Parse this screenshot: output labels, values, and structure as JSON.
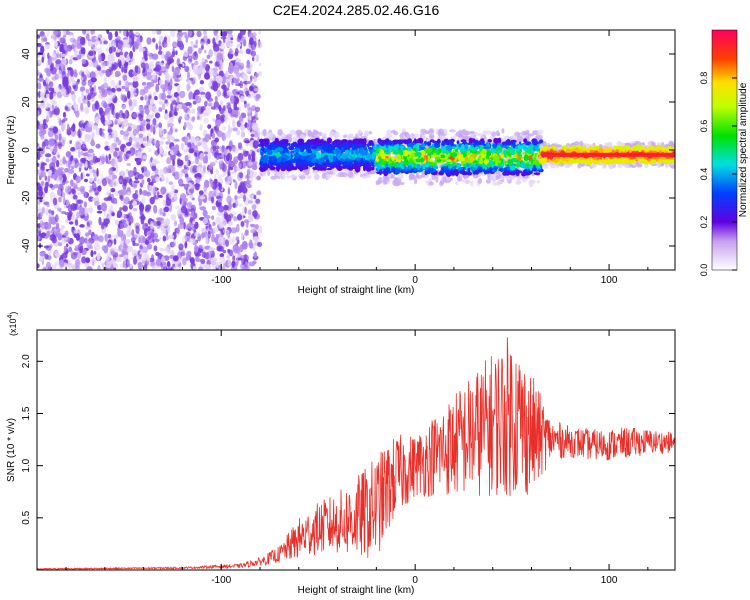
{
  "title": "C2E4.2024.285.02.46.G16",
  "chart_data": [
    {
      "type": "heatmap",
      "xlabel": "Height of straight line (km)",
      "ylabel": "Frequency (Hz)",
      "xlim": [
        -195,
        134
      ],
      "ylim": [
        -50,
        50
      ],
      "x_ticks": [
        -100,
        0,
        100
      ],
      "y_ticks": [
        40,
        20,
        0,
        -20,
        -40
      ],
      "colorbar": {
        "label": "Normalized spectral amplitude",
        "range": [
          0.0,
          1.0
        ],
        "ticks": [
          0.0,
          0.2,
          0.4,
          0.6,
          0.8
        ],
        "tick_labels": [
          "0.0",
          "0.2",
          "0.4",
          "0.6",
          "0.8"
        ]
      },
      "regions": [
        {
          "x_range": [
            -195,
            -80
          ],
          "freq_range": [
            -50,
            50
          ],
          "amplitude": [
            0.0,
            0.1
          ]
        },
        {
          "x_range": [
            -80,
            -20
          ],
          "center_freq": -2,
          "half_width": 6,
          "amplitude": [
            0.2,
            0.5
          ]
        },
        {
          "x_range": [
            -20,
            65
          ],
          "center_freq": -3,
          "half_width": 7,
          "amplitude": [
            0.2,
            0.9
          ]
        },
        {
          "x_range": [
            65,
            134
          ],
          "center_freq": -2,
          "half_width": 3,
          "amplitude": [
            0.7,
            1.0
          ]
        }
      ]
    },
    {
      "type": "line",
      "title": "",
      "xlabel": "Height of straight line (km)",
      "ylabel": "SNR (10 * v/v)",
      "y_multiplier": "(x10",
      "y_multiplier_exp": "4",
      "y_multiplier_close": ")",
      "xlim": [
        -195,
        134
      ],
      "ylim": [
        0,
        23000
      ],
      "x_ticks": [
        -100,
        0,
        100
      ],
      "y_ticks": [
        0.5,
        1.0,
        1.5,
        2.0
      ],
      "y_tick_labels": [
        "0.5",
        "1.0",
        "1.5",
        "2.0"
      ],
      "color": "#e8302a",
      "series": [
        {
          "x": [
            -195,
            -160,
            -120,
            -90,
            -80,
            -70,
            -60,
            -50,
            -40,
            -30,
            -20,
            -10,
            0,
            10,
            20,
            30,
            40,
            50,
            60,
            70,
            80,
            90,
            100,
            110,
            120,
            134
          ],
          "values": [
            100,
            150,
            200,
            400,
            800,
            1500,
            3000,
            4000,
            4500,
            5000,
            6000,
            9000,
            10000,
            11000,
            12000,
            13000,
            14000,
            15000,
            13000,
            12500,
            12300,
            12000,
            12000,
            12200,
            12300,
            12200
          ],
          "spread": [
            50,
            60,
            80,
            200,
            400,
            800,
            2000,
            2500,
            3000,
            4000,
            5000,
            4000,
            3000,
            4000,
            5000,
            6000,
            7000,
            8000,
            6000,
            2000,
            1500,
            1500,
            1500,
            1500,
            1200,
            1000
          ]
        }
      ]
    }
  ]
}
